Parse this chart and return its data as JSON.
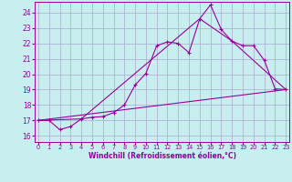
{
  "xlabel": "Windchill (Refroidissement éolien,°C)",
  "bg_color": "#c8eef0",
  "line_color": "#990099",
  "grid_color": "#aaaacc",
  "x_ticks": [
    0,
    1,
    2,
    3,
    4,
    5,
    6,
    7,
    8,
    9,
    10,
    11,
    12,
    13,
    14,
    15,
    16,
    17,
    18,
    19,
    20,
    21,
    22,
    23
  ],
  "y_ticks": [
    16,
    17,
    18,
    19,
    20,
    21,
    22,
    23,
    24
  ],
  "xlim": [
    -0.3,
    23.3
  ],
  "ylim": [
    15.6,
    24.7
  ],
  "line1_x": [
    0,
    1,
    2,
    3,
    4,
    5,
    6,
    7,
    8,
    9,
    10,
    11,
    12,
    13,
    14,
    15,
    16,
    17,
    18,
    19,
    20,
    21,
    22,
    23
  ],
  "line1_y": [
    17.0,
    17.0,
    16.4,
    16.6,
    17.1,
    17.2,
    17.25,
    17.5,
    18.0,
    19.3,
    20.05,
    21.85,
    22.1,
    22.0,
    21.4,
    23.6,
    24.5,
    22.9,
    22.15,
    21.85,
    21.85,
    20.9,
    19.05,
    19.0
  ],
  "line2_x": [
    0,
    4,
    15,
    18,
    23
  ],
  "line2_y": [
    17.0,
    17.1,
    23.6,
    22.15,
    19.0
  ],
  "line3_x": [
    0,
    23
  ],
  "line3_y": [
    17.0,
    19.0
  ]
}
